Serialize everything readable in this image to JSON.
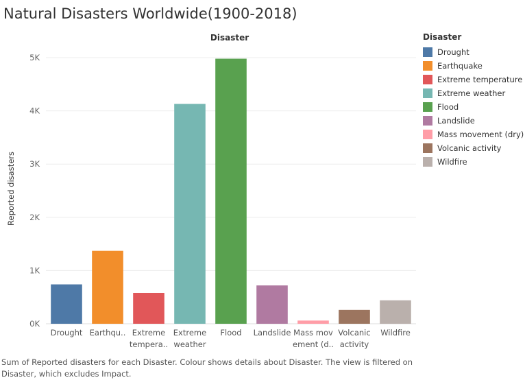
{
  "title": "Natural Disasters Worldwide(1900-2018)",
  "caption": "Sum of Reported disasters for each Disaster.  Colour shows details about Disaster. The view is filtered on Disaster, which excludes Impact.",
  "legend": {
    "title": "Disaster",
    "items": [
      {
        "label": "Drought",
        "color": "#4e79a7"
      },
      {
        "label": "Earthquake",
        "color": "#f28e2b"
      },
      {
        "label": "Extreme temperature",
        "color": "#e15759"
      },
      {
        "label": "Extreme weather",
        "color": "#76b7b2"
      },
      {
        "label": "Flood",
        "color": "#59a14f"
      },
      {
        "label": "Landslide",
        "color": "#b07aa1"
      },
      {
        "label": "Mass movement (dry)",
        "color": "#ff9da7"
      },
      {
        "label": "Volcanic activity",
        "color": "#9c755f"
      },
      {
        "label": "Wildfire",
        "color": "#bab0ac"
      }
    ]
  },
  "chart_data": {
    "type": "bar",
    "title": "Natural Disasters Worldwide(1900-2018)",
    "header": "Disaster",
    "xlabel": "",
    "ylabel": "Reported disasters",
    "ylim": [
      0,
      5000
    ],
    "yticks": [
      0,
      1000,
      2000,
      3000,
      4000,
      5000
    ],
    "ytick_labels": [
      "0K",
      "1K",
      "2K",
      "3K",
      "4K",
      "5K"
    ],
    "grid": true,
    "legend_position": "right",
    "categories": [
      "Drought",
      "Earthquake",
      "Extreme temperature",
      "Extreme weather",
      "Flood",
      "Landslide",
      "Mass movement (dry)",
      "Volcanic activity",
      "Wildfire"
    ],
    "category_labels": [
      [
        "Drought"
      ],
      [
        "Earthqu.."
      ],
      [
        "Extreme",
        "tempera.."
      ],
      [
        "Extreme",
        "weather"
      ],
      [
        "Flood"
      ],
      [
        "Landslide"
      ],
      [
        "Mass mov",
        "ement (d.."
      ],
      [
        "Volcanic",
        "activity"
      ],
      [
        "Wildfire"
      ]
    ],
    "values": [
      740,
      1370,
      580,
      4130,
      4980,
      720,
      60,
      260,
      440
    ],
    "colors": [
      "#4e79a7",
      "#f28e2b",
      "#e15759",
      "#76b7b2",
      "#59a14f",
      "#b07aa1",
      "#ff9da7",
      "#9c755f",
      "#bab0ac"
    ]
  }
}
